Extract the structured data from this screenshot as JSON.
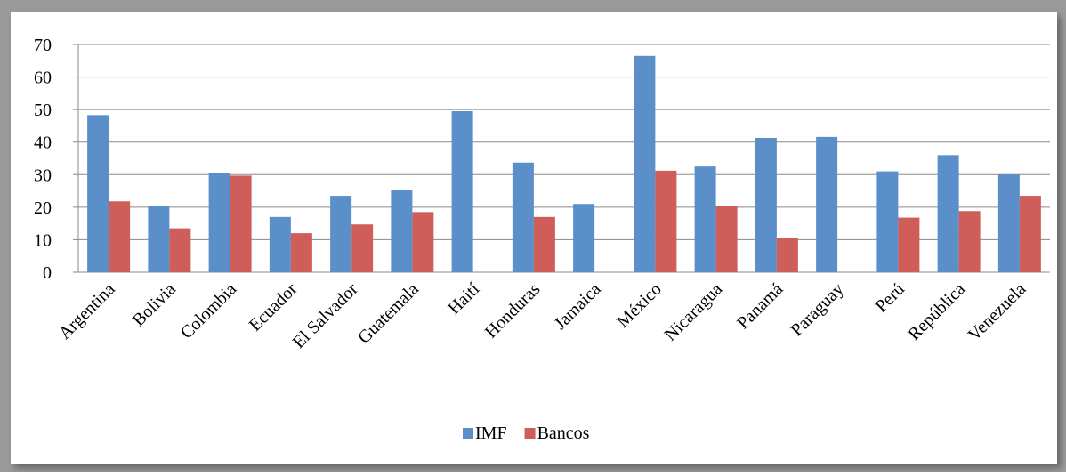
{
  "chart_data": {
    "type": "bar",
    "categories": [
      "Argentina",
      "Bolivia",
      "Colombia",
      "Ecuador",
      "El Salvador",
      "Guatemala",
      "Haití",
      "Honduras",
      "Jamaica",
      "México",
      "Nicaragua",
      "Panamá",
      "Paraguay",
      "Perú",
      "República",
      "Venezuela"
    ],
    "series": [
      {
        "name": "IMF",
        "color": "#5b8fc9",
        "values": [
          48.3,
          20.5,
          30.4,
          17,
          23.5,
          25.2,
          49.5,
          33.7,
          21,
          66.5,
          32.5,
          41.3,
          41.6,
          31,
          36,
          30
        ]
      },
      {
        "name": "Bancos",
        "color": "#cf5e5a",
        "values": [
          21.8,
          13.5,
          29.7,
          12,
          14.7,
          18.5,
          null,
          17,
          null,
          31.2,
          20.4,
          10.5,
          null,
          16.8,
          18.8,
          23.5
        ]
      }
    ],
    "ylim": [
      0,
      70
    ],
    "yticks": [
      0,
      10,
      20,
      30,
      40,
      50,
      60,
      70
    ],
    "grid": true,
    "legend": "bottom"
  }
}
